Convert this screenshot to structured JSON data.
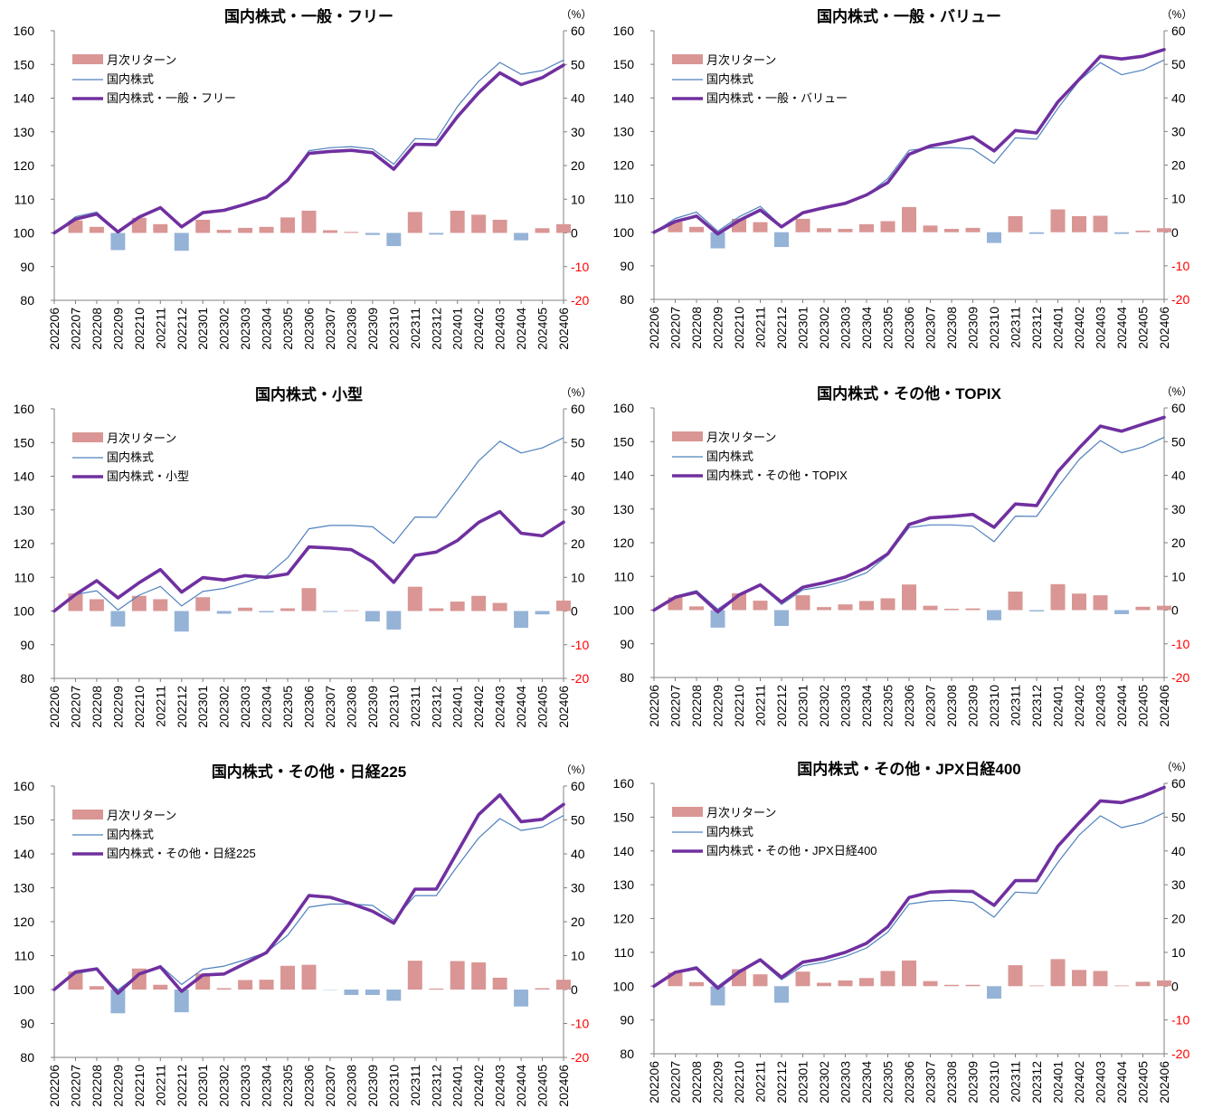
{
  "colors": {
    "bar_positive": "#d99694",
    "bar_negative": "#95b3d7",
    "benchmark_line": "#4f81bd",
    "fund_line": "#7030a0",
    "axis": "#808080",
    "negative_tick": "#ff0000"
  },
  "chart_data": [
    {
      "type": "bar+line",
      "title": "国内株式・一般・フリー",
      "unit_label": "（%）",
      "categories": [
        "202206",
        "202207",
        "202208",
        "202209",
        "202210",
        "202211",
        "202212",
        "202301",
        "202302",
        "202303",
        "202304",
        "202305",
        "202306",
        "202307",
        "202308",
        "202309",
        "202310",
        "202311",
        "202312",
        "202401",
        "202402",
        "202403",
        "202404",
        "202405",
        "202406"
      ],
      "y_left": {
        "min": 80,
        "max": 160,
        "step": 10
      },
      "y_right": {
        "min": -20,
        "max": 60,
        "step": 10
      },
      "bars": {
        "name": "月次リターン",
        "axis": "right",
        "values": [
          0,
          3.7,
          1.8,
          -5.1,
          4.5,
          2.6,
          -5.3,
          3.9,
          0.9,
          1.5,
          1.8,
          4.6,
          6.6,
          0.8,
          0.3,
          -0.6,
          -3.9,
          6.2,
          -0.5,
          6.6,
          5.4,
          3.9,
          -2.2,
          1.4,
          2.6
        ]
      },
      "series": [
        {
          "name": "国内株式",
          "axis": "left",
          "style": "thin",
          "values": [
            100,
            104.8,
            106.2,
            100.3,
            104.5,
            107.5,
            101.5,
            105.8,
            106.6,
            108.5,
            110.4,
            115.7,
            124.4,
            125.3,
            125.6,
            124.9,
            120.4,
            128.0,
            127.7,
            137.5,
            145.0,
            150.6,
            147.1,
            148.2,
            151.3
          ]
        },
        {
          "name": "国内株式・一般・フリー",
          "axis": "left",
          "style": "thick",
          "values": [
            100,
            104.1,
            105.6,
            100.3,
            104.7,
            107.5,
            101.8,
            106.0,
            106.7,
            108.5,
            110.6,
            115.6,
            123.6,
            124.2,
            124.5,
            123.8,
            118.9,
            126.3,
            126.2,
            134.5,
            141.6,
            147.5,
            144.0,
            146.1,
            149.8
          ]
        }
      ]
    },
    {
      "type": "bar+line",
      "title": "国内株式・一般・バリュー",
      "unit_label": "（%）",
      "categories": [
        "202206",
        "202207",
        "202208",
        "202209",
        "202210",
        "202211",
        "202212",
        "202301",
        "202302",
        "202303",
        "202304",
        "202305",
        "202306",
        "202307",
        "202308",
        "202309",
        "202310",
        "202311",
        "202312",
        "202401",
        "202402",
        "202403",
        "202404",
        "202405",
        "202406"
      ],
      "y_left": {
        "min": 80,
        "max": 160,
        "step": 10
      },
      "y_right": {
        "min": -20,
        "max": 60,
        "step": 10
      },
      "bars": {
        "name": "月次リターン",
        "axis": "right",
        "values": [
          0,
          3.1,
          1.6,
          -4.8,
          4.0,
          3.0,
          -4.4,
          4.0,
          1.2,
          1.0,
          2.4,
          3.3,
          7.5,
          2.0,
          1.0,
          1.3,
          -3.2,
          4.8,
          -0.5,
          6.8,
          4.8,
          4.9,
          -0.5,
          0.5,
          1.2
        ]
      },
      "series": [
        {
          "name": "国内株式",
          "axis": "left",
          "style": "thin",
          "values": [
            100,
            104.1,
            106.0,
            100.3,
            104.6,
            107.7,
            101.8,
            106.0,
            106.9,
            108.6,
            111.0,
            116.0,
            124.4,
            125.1,
            125.2,
            124.8,
            120.5,
            128.1,
            127.7,
            136.9,
            145.1,
            150.5,
            146.9,
            148.3,
            151.3
          ]
        },
        {
          "name": "国内株式・一般・バリュー",
          "axis": "left",
          "style": "thick",
          "values": [
            100,
            103.2,
            104.8,
            99.5,
            103.5,
            106.6,
            101.6,
            105.8,
            107.3,
            108.6,
            111.1,
            114.8,
            123.2,
            125.7,
            126.9,
            128.4,
            124.2,
            130.3,
            129.6,
            138.8,
            145.5,
            152.4,
            151.6,
            152.4,
            154.4
          ]
        }
      ]
    },
    {
      "type": "bar+line",
      "title": "国内株式・小型",
      "unit_label": "（%）",
      "categories": [
        "202206",
        "202207",
        "202208",
        "202209",
        "202210",
        "202211",
        "202212",
        "202301",
        "202302",
        "202303",
        "202304",
        "202305",
        "202306",
        "202307",
        "202308",
        "202309",
        "202310",
        "202311",
        "202312",
        "202401",
        "202402",
        "202403",
        "202404",
        "202405",
        "202406"
      ],
      "y_left": {
        "min": 80,
        "max": 160,
        "step": 10
      },
      "y_right": {
        "min": -20,
        "max": 60,
        "step": 10
      },
      "bars": {
        "name": "月次リターン",
        "axis": "right",
        "values": [
          0,
          5.2,
          3.5,
          -4.6,
          4.5,
          3.5,
          -6.1,
          4.1,
          -0.8,
          1.0,
          -0.4,
          0.8,
          6.8,
          -0.3,
          0.2,
          -3.1,
          -5.5,
          7.2,
          0.8,
          2.8,
          4.5,
          2.4,
          -5.0,
          -1.0,
          3.1
        ]
      },
      "series": [
        {
          "name": "国内株式",
          "axis": "left",
          "style": "thin",
          "values": [
            100,
            104.9,
            106.0,
            100.3,
            104.7,
            107.3,
            101.5,
            105.8,
            106.7,
            108.5,
            110.5,
            115.8,
            124.4,
            125.4,
            125.4,
            125.0,
            120.1,
            127.9,
            127.8,
            136.1,
            144.6,
            150.4,
            146.9,
            148.4,
            151.4
          ]
        },
        {
          "name": "国内株式・小型",
          "axis": "left",
          "style": "thick",
          "values": [
            100,
            104.9,
            109.0,
            103.9,
            108.4,
            112.3,
            105.6,
            109.9,
            109.2,
            110.5,
            110.0,
            111.0,
            119.0,
            118.7,
            118.2,
            114.6,
            108.5,
            116.5,
            117.5,
            120.9,
            126.3,
            129.5,
            123.1,
            122.3,
            126.4
          ]
        }
      ]
    },
    {
      "type": "bar+line",
      "title": "国内株式・その他・TOPIX",
      "unit_label": "（%）",
      "categories": [
        "202206",
        "202207",
        "202208",
        "202209",
        "202210",
        "202211",
        "202212",
        "202301",
        "202302",
        "202303",
        "202304",
        "202305",
        "202306",
        "202307",
        "202308",
        "202309",
        "202310",
        "202311",
        "202312",
        "202401",
        "202402",
        "202403",
        "202404",
        "202405",
        "202406"
      ],
      "y_left": {
        "min": 80,
        "max": 160,
        "step": 10
      },
      "y_right": {
        "min": -20,
        "max": 60,
        "step": 10
      },
      "bars": {
        "name": "月次リターン",
        "axis": "right",
        "values": [
          0,
          3.8,
          1.1,
          -5.2,
          5.0,
          2.8,
          -4.7,
          4.4,
          0.9,
          1.7,
          2.7,
          3.5,
          7.6,
          1.3,
          0.4,
          0.5,
          -3.0,
          5.5,
          -0.4,
          7.7,
          4.9,
          4.4,
          -1.2,
          1.0,
          1.3
        ]
      },
      "series": [
        {
          "name": "国内株式",
          "axis": "left",
          "style": "thin",
          "values": [
            100,
            104.1,
            105.8,
            100.3,
            104.6,
            107.4,
            101.7,
            106.0,
            107.0,
            108.7,
            111.1,
            116.3,
            124.5,
            125.3,
            125.3,
            124.9,
            120.3,
            127.9,
            127.8,
            136.5,
            144.7,
            150.3,
            146.7,
            148.4,
            151.3
          ]
        },
        {
          "name": "国内株式・その他・TOPIX",
          "axis": "left",
          "style": "thick",
          "values": [
            100,
            103.8,
            105.3,
            99.5,
            104.5,
            107.5,
            102.4,
            106.8,
            108.1,
            109.8,
            112.6,
            116.7,
            125.4,
            127.4,
            127.8,
            128.4,
            124.6,
            131.5,
            131.0,
            141.1,
            148.1,
            154.6,
            153.1,
            155.2,
            157.2
          ]
        }
      ]
    },
    {
      "type": "bar+line",
      "title": "国内株式・その他・日経225",
      "unit_label": "（%）",
      "categories": [
        "202206",
        "202207",
        "202208",
        "202209",
        "202210",
        "202211",
        "202212",
        "202301",
        "202302",
        "202303",
        "202304",
        "202305",
        "202306",
        "202307",
        "202308",
        "202309",
        "202310",
        "202311",
        "202312",
        "202401",
        "202402",
        "202403",
        "202404",
        "202405",
        "202406"
      ],
      "y_left": {
        "min": 80,
        "max": 160,
        "step": 10
      },
      "y_right": {
        "min": -20,
        "max": 60,
        "step": 10
      },
      "bars": {
        "name": "月次リターン",
        "axis": "right",
        "values": [
          0,
          5.3,
          1.0,
          -7.0,
          6.2,
          1.4,
          -6.7,
          4.7,
          0.4,
          2.8,
          2.9,
          7.0,
          7.3,
          -0.1,
          -1.6,
          -1.6,
          -3.3,
          8.5,
          0.3,
          8.4,
          8.0,
          3.5,
          -5.0,
          0.4,
          2.9
        ]
      },
      "series": [
        {
          "name": "国内株式",
          "axis": "left",
          "style": "thin",
          "values": [
            100,
            104.7,
            105.8,
            99.9,
            104.6,
            107.1,
            101.5,
            106.0,
            106.9,
            108.8,
            111.0,
            116.0,
            124.3,
            125.2,
            125.2,
            124.8,
            120.4,
            127.7,
            127.7,
            136.4,
            144.7,
            150.4,
            146.9,
            147.9,
            151.3
          ]
        },
        {
          "name": "国内株式・その他・日経225",
          "axis": "left",
          "style": "thick",
          "values": [
            100,
            105.2,
            106.1,
            98.9,
            104.6,
            106.7,
            99.5,
            104.3,
            104.6,
            107.7,
            110.9,
            118.8,
            127.7,
            127.2,
            125.3,
            123.1,
            119.6,
            129.6,
            129.6,
            140.6,
            151.6,
            157.4,
            149.5,
            150.2,
            154.6
          ]
        }
      ]
    },
    {
      "type": "bar+line",
      "title": "国内株式・その他・JPX日経400",
      "unit_label": "（%）",
      "categories": [
        "202206",
        "202207",
        "202208",
        "202209",
        "202210",
        "202211",
        "202212",
        "202301",
        "202302",
        "202303",
        "202304",
        "202305",
        "202306",
        "202307",
        "202308",
        "202309",
        "202310",
        "202311",
        "202312",
        "202401",
        "202402",
        "202403",
        "202404",
        "202405",
        "202406"
      ],
      "y_left": {
        "min": 80,
        "max": 160,
        "step": 10
      },
      "y_right": {
        "min": -20,
        "max": 60,
        "step": 10
      },
      "bars": {
        "name": "月次リターン",
        "axis": "right",
        "values": [
          0,
          4.0,
          1.2,
          -5.7,
          5.0,
          3.5,
          -4.9,
          4.3,
          1.0,
          1.7,
          2.4,
          4.5,
          7.6,
          1.5,
          0.4,
          0.4,
          -3.7,
          6.2,
          0.2,
          8.0,
          4.8,
          4.5,
          0.2,
          1.3,
          1.7
        ]
      },
      "series": [
        {
          "name": "国内株式",
          "axis": "left",
          "style": "thin",
          "values": [
            100,
            104.3,
            105.8,
            100.0,
            104.7,
            107.4,
            101.9,
            106.0,
            107.1,
            108.8,
            111.3,
            116.0,
            124.3,
            125.2,
            125.4,
            124.8,
            120.4,
            127.8,
            127.5,
            136.6,
            144.7,
            150.4,
            146.9,
            148.3,
            151.3
          ]
        },
        {
          "name": "国内株式・その他・JPX日経400",
          "axis": "left",
          "style": "thick",
          "values": [
            100,
            104.1,
            105.3,
            99.4,
            104.2,
            107.8,
            102.6,
            107.1,
            108.2,
            110.0,
            112.7,
            117.6,
            126.2,
            127.8,
            128.1,
            128.0,
            123.9,
            131.2,
            131.2,
            141.4,
            148.3,
            154.8,
            154.3,
            156.2,
            158.8
          ]
        }
      ]
    }
  ]
}
